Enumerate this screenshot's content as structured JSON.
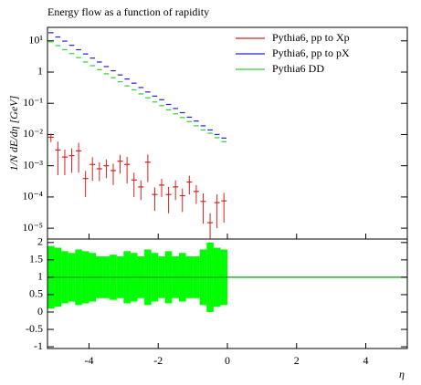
{
  "chart_data": {
    "type": "histogram",
    "title": "Energy flow as a function of rapidity",
    "ylabel": "1/N dE/dη [GeV]",
    "xlabel": "η",
    "bins": [
      -5.2,
      -5.0,
      -4.8,
      -4.6,
      -4.4,
      -4.2,
      -4.0,
      -3.8,
      -3.6,
      -3.4,
      -3.2,
      -3.0,
      -2.8,
      -2.6,
      -2.4,
      -2.2,
      -2.0,
      -1.8,
      -1.6,
      -1.4,
      -1.2,
      -1.0,
      -0.8,
      -0.6,
      -0.4,
      -0.2,
      0.0
    ],
    "xlim": [
      -5.2,
      5.2
    ],
    "xticks": [
      -4,
      -2,
      0,
      2,
      4
    ],
    "ylim": [
      4.5e-06,
      27
    ],
    "log_y": true,
    "yticks": [
      {
        "value": 10,
        "label": "10¹"
      },
      1,
      {
        "value": 0.1,
        "label": "10⁻¹"
      },
      {
        "value": 0.01,
        "label": "10⁻²"
      },
      {
        "value": 0.001,
        "label": "10⁻³"
      },
      {
        "value": 0.0001,
        "label": "10⁻⁴"
      },
      {
        "value": 1e-05,
        "label": "10⁻⁵"
      }
    ],
    "legend": "upper right",
    "series": [
      {
        "name": "Pythia6, pp to Xp",
        "color": "#d62020",
        "style": "points",
        "values": [
          0.0082,
          0.0032,
          0.0019,
          0.0021,
          0.003,
          0.00039,
          0.0011,
          0.0008,
          0.001,
          0.0007,
          0.0014,
          0.0011,
          0.00035,
          0.00021,
          0.0013,
          0.00012,
          0.00024,
          0.00012,
          0.00021,
          0.00011,
          0.0003,
          0.00015,
          7.2e-05,
          1.5e-05,
          6.6e-05,
          7.5e-05
        ],
        "errors": [
          0.0025,
          0.0027,
          0.0014,
          0.0015,
          0.0024,
          0.00029,
          0.00077,
          0.00048,
          0.0006,
          0.00046,
          0.00084,
          0.00083,
          0.00025,
          0.00013,
          0.001,
          8.4e-05,
          0.00014,
          9e-05,
          0.00013,
          7.7e-05,
          0.00018,
          9e-05,
          5.8e-05,
          1.5e-05,
          5.6e-05,
          6e-05
        ]
      },
      {
        "name": "Pythia6, pp to pX",
        "color": "#2020e0",
        "style": "steps",
        "values": [
          18.2,
          13.3,
          9.8,
          7.2,
          5.2,
          3.8,
          2.8,
          2.1,
          1.5,
          1.1,
          0.81,
          0.6,
          0.44,
          0.32,
          0.23,
          0.17,
          0.13,
          0.092,
          0.068,
          0.05,
          0.036,
          0.027,
          0.019,
          0.014,
          0.01,
          0.0077
        ]
      },
      {
        "name": "Pythia6 DD",
        "color": "#30d030",
        "style": "steps",
        "values": [
          9.3,
          7.0,
          5.2,
          3.9,
          2.9,
          2.1,
          1.6,
          1.19,
          0.88,
          0.66,
          0.49,
          0.36,
          0.27,
          0.2,
          0.15,
          0.11,
          0.084,
          0.062,
          0.046,
          0.035,
          0.026,
          0.019,
          0.014,
          0.011,
          0.0079,
          0.0059
        ]
      }
    ],
    "ratio": {
      "ylim": [
        -1.05,
        2.1
      ],
      "yticks": [
        -1,
        -0.5,
        0,
        0.5,
        1,
        1.5,
        2
      ],
      "reference": 1,
      "color": "#00ff00",
      "line_color": "#00a000",
      "errors": [
        0.9,
        0.85,
        0.75,
        0.7,
        0.8,
        0.75,
        0.7,
        0.6,
        0.6,
        0.65,
        0.6,
        0.75,
        0.7,
        0.6,
        0.8,
        0.7,
        0.6,
        0.75,
        0.6,
        0.7,
        0.6,
        0.6,
        0.8,
        1.0,
        0.85,
        0.8
      ]
    }
  }
}
